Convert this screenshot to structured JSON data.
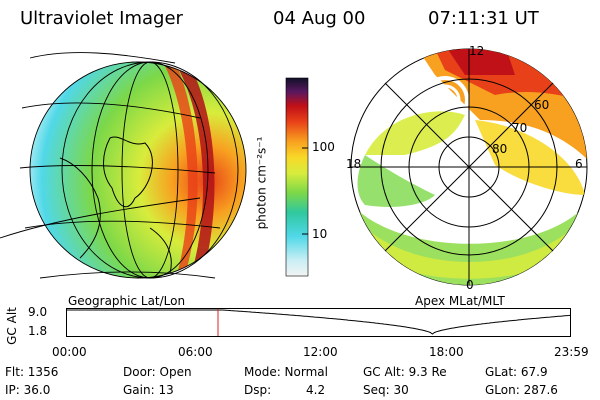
{
  "header": {
    "instrument": "Ultraviolet Imager",
    "date": "04 Aug 00",
    "time": "07:11:31 UT"
  },
  "colorbar": {
    "unit_label": "photon cm⁻²s⁻¹",
    "ticks": [
      "100",
      "10"
    ],
    "stops": [
      "#f4f4f4",
      "#c8eef4",
      "#50d8e8",
      "#30c8a0",
      "#7cd848",
      "#d8ec3c",
      "#f8d828",
      "#f8a020",
      "#e84018",
      "#c01018",
      "#5a1860",
      "#101028"
    ]
  },
  "geo_panel": {
    "caption": "Geographic Lat/Lon"
  },
  "polar_panel": {
    "caption": "Apex MLat/MLT",
    "mlt_labels": {
      "top": "12",
      "left": "18",
      "right": "6",
      "bottom": "0"
    },
    "lat_labels": [
      "60",
      "70",
      "80"
    ]
  },
  "altitude_plot": {
    "ylabel": "GC Alt",
    "yticks": [
      "9.0",
      "1.8"
    ],
    "xticks": [
      "00:00",
      "06:00",
      "12:00",
      "18:00",
      "23:59"
    ],
    "marker_hour": 7.19,
    "marker_color": "#e02020"
  },
  "info": {
    "col1": [
      "Flt: 1356",
      "IP: 36.0"
    ],
    "col2": [
      "Door: Open",
      "Gain: 13"
    ],
    "col3a": [
      "Mode: Normal",
      "Dsp:"
    ],
    "col3b": [
      "",
      "4.2"
    ],
    "col4": [
      "GC Alt: 9.3 Re",
      "Seq: 30"
    ],
    "col5": [
      "GLat:  67.9",
      "GLon: 287.6"
    ]
  }
}
